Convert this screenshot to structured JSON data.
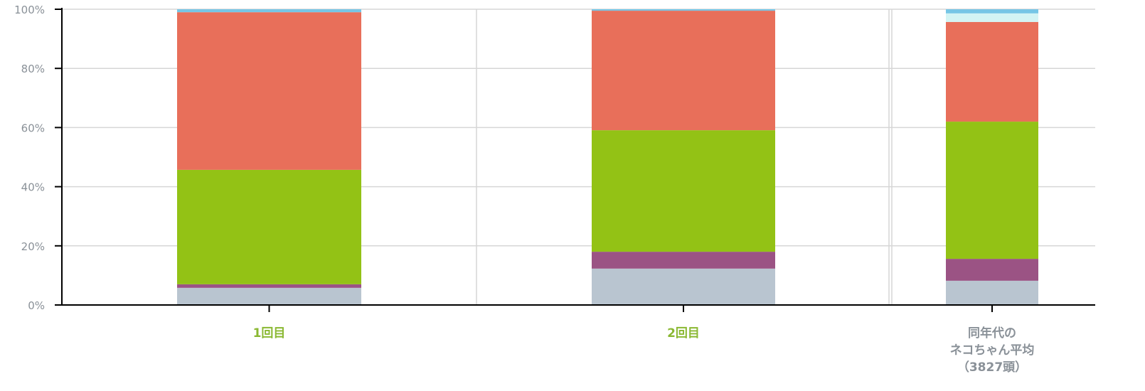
{
  "chart_data": {
    "type": "bar",
    "stacked": true,
    "categories": [
      "1回目",
      "2回目",
      "同年代の\nネコちゃん平均\n（3827頭）"
    ],
    "category_colors": [
      "#8ab832",
      "#8ab832",
      "#8a9198"
    ],
    "series": [
      {
        "color": "#b9c5d0",
        "values": [
          5.8,
          12.3,
          8.2
        ]
      },
      {
        "color": "#9b5384",
        "values": [
          1.2,
          5.7,
          7.4
        ]
      },
      {
        "color": "#93c215",
        "values": [
          38.7,
          41.1,
          46.4
        ]
      },
      {
        "color": "#e86f5a",
        "values": [
          53.3,
          40.4,
          33.7
        ]
      },
      {
        "color": "#d3f4f4",
        "values": [
          0,
          0,
          2.9
        ]
      },
      {
        "color": "#77c6e6",
        "values": [
          1.0,
          0.5,
          1.4
        ]
      }
    ],
    "y_ticks": [
      "0%",
      "20%",
      "40%",
      "60%",
      "80%",
      "100%"
    ],
    "ylim": [
      0,
      100
    ],
    "grid": true
  }
}
